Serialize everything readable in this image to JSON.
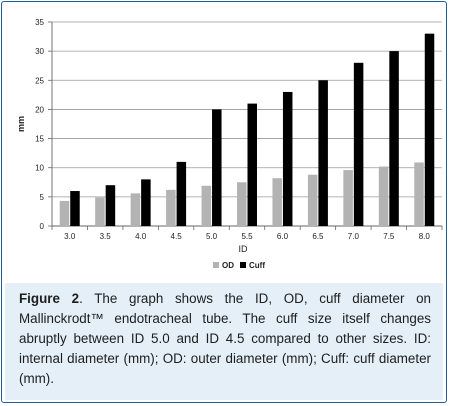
{
  "chart_data": {
    "type": "bar",
    "categories": [
      "3.0",
      "3.5",
      "4.0",
      "4.5",
      "5.0",
      "5.5",
      "6.0",
      "6.5",
      "7.0",
      "7.5",
      "8.0"
    ],
    "series": [
      {
        "name": "OD",
        "color": "#b3b3b3",
        "values": [
          4.3,
          4.9,
          5.6,
          6.2,
          6.9,
          7.5,
          8.2,
          8.8,
          9.6,
          10.2,
          10.9
        ]
      },
      {
        "name": "Cuff",
        "color": "#000000",
        "values": [
          6,
          7,
          8,
          11,
          20,
          21,
          23,
          25,
          28,
          30,
          33
        ]
      }
    ],
    "xlabel": "ID",
    "ylabel": "mm",
    "ylim": [
      0,
      35
    ],
    "yticks": [
      "0",
      "5",
      "10",
      "15",
      "20",
      "25",
      "30",
      "35"
    ],
    "grid": true,
    "legend_position": "bottom-center"
  },
  "caption": {
    "label": "Figure 2",
    "text": ". The graph shows the ID, OD, cuff diameter on Mallinckrodt™ endotracheal tube. The cuff size itself changes abruptly between ID 5.0 and ID 4.5 compared to other sizes. ID: internal diameter (mm); OD: outer diameter (mm); Cuff: cuff diameter (mm)."
  }
}
